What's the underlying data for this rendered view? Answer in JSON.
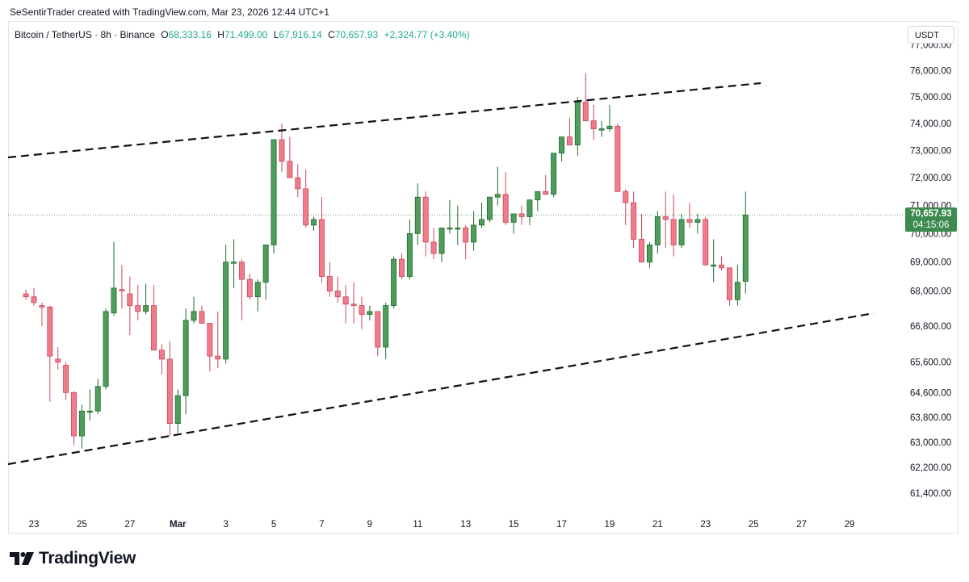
{
  "credit": "SeSentirTrader created with TradingView.com, Mar 23, 2026 12:44 UTC+1",
  "legend": {
    "symbol": "Bitcoin / TetherUS · 8h · Binance",
    "o_label": "O",
    "o": "68,333.16",
    "h_label": "H",
    "h": "71,499.00",
    "l_label": "L",
    "l": "67,916.14",
    "c_label": "C",
    "c": "70,657.93",
    "change": "+2,324.77 (+3.40%)"
  },
  "currency": "USDT",
  "last_price": {
    "price": "70,657.93",
    "countdown": "04:15:06"
  },
  "brand": "TradingView",
  "colors": {
    "up": "#4f9d5d",
    "down": "#ef7b8b",
    "up_border": "#1e6b2d",
    "down_border": "#c9485b",
    "trendline": "#111111",
    "price_line": "#3c8a4e"
  },
  "chart_data": {
    "type": "candlestick",
    "symbol": "Bitcoin / TetherUS",
    "interval": "8h",
    "exchange": "Binance",
    "y_scale": "log",
    "y_ticks": [
      61400,
      62200,
      63000,
      63800,
      64600,
      65600,
      66800,
      68000,
      69000,
      70000,
      71000,
      72000,
      73000,
      74000,
      75000,
      76000,
      77000
    ],
    "y_tick_labels": [
      "61,400.00",
      "62,200.00",
      "63,000.00",
      "63,800.00",
      "64,600.00",
      "65,600.00",
      "66,800.00",
      "68,000.00",
      "69,000.00",
      "70,000.00",
      "71,000.00",
      "72,000.00",
      "73,000.00",
      "74,000.00",
      "75,000.00",
      "76,000.00",
      "77,000.00"
    ],
    "x_ticks": [
      {
        "label": "23",
        "date": "2026-02-23"
      },
      {
        "label": "25",
        "date": "2026-02-25"
      },
      {
        "label": "27",
        "date": "2026-02-27"
      },
      {
        "label": "Mar",
        "date": "2026-03-01"
      },
      {
        "label": "3",
        "date": "2026-03-03"
      },
      {
        "label": "5",
        "date": "2026-03-05"
      },
      {
        "label": "7",
        "date": "2026-03-07"
      },
      {
        "label": "9",
        "date": "2026-03-09"
      },
      {
        "label": "11",
        "date": "2026-03-11"
      },
      {
        "label": "13",
        "date": "2026-03-13"
      },
      {
        "label": "15",
        "date": "2026-03-15"
      },
      {
        "label": "17",
        "date": "2026-03-17"
      },
      {
        "label": "19",
        "date": "2026-03-19"
      },
      {
        "label": "21",
        "date": "2026-03-21"
      },
      {
        "label": "23",
        "date": "2026-03-23"
      },
      {
        "label": "25",
        "date": "2026-03-25"
      },
      {
        "label": "27",
        "date": "2026-03-27"
      },
      {
        "label": "29",
        "date": "2026-03-29"
      }
    ],
    "candles_ohlc": [
      [
        67900,
        68050,
        67700,
        67800
      ],
      [
        67800,
        68100,
        67500,
        67600
      ],
      [
        67500,
        67600,
        66800,
        67450
      ],
      [
        67450,
        67500,
        64300,
        65800
      ],
      [
        65700,
        66100,
        65350,
        65600
      ],
      [
        65500,
        65600,
        64350,
        64600
      ],
      [
        64600,
        64650,
        62900,
        63200
      ],
      [
        63200,
        64200,
        62800,
        64000
      ],
      [
        64000,
        64700,
        63700,
        64000
      ],
      [
        64000,
        65050,
        63900,
        64800
      ],
      [
        64800,
        67400,
        64700,
        67300
      ],
      [
        67250,
        69700,
        67150,
        68100
      ],
      [
        68050,
        68900,
        67400,
        68000
      ],
      [
        67900,
        68500,
        66500,
        67500
      ],
      [
        67500,
        68200,
        67000,
        67300
      ],
      [
        67300,
        68250,
        67200,
        67500
      ],
      [
        67500,
        68200,
        67100,
        66000
      ],
      [
        66000,
        66200,
        65200,
        65700
      ],
      [
        65700,
        66300,
        63200,
        63600
      ],
      [
        63600,
        64700,
        63300,
        64500
      ],
      [
        64500,
        67400,
        63900,
        67000
      ],
      [
        67000,
        67800,
        66900,
        67300
      ],
      [
        67300,
        67500,
        67000,
        66900
      ],
      [
        66900,
        66900,
        65300,
        65800
      ],
      [
        65800,
        67300,
        65400,
        65700
      ],
      [
        65700,
        69600,
        65550,
        69000
      ],
      [
        69000,
        69800,
        68100,
        69000
      ],
      [
        69000,
        69100,
        67000,
        68400
      ],
      [
        68400,
        68600,
        67700,
        67800
      ],
      [
        67800,
        68400,
        67300,
        68300
      ],
      [
        68300,
        69500,
        67700,
        69600
      ],
      [
        69600,
        72900,
        69300,
        73400
      ],
      [
        73400,
        74000,
        72200,
        72600
      ],
      [
        72600,
        73500,
        72000,
        72000
      ],
      [
        72000,
        72500,
        71300,
        71600
      ],
      [
        71600,
        72300,
        70200,
        70300
      ],
      [
        70300,
        70600,
        70100,
        70500
      ],
      [
        70500,
        71300,
        68300,
        68500
      ],
      [
        68500,
        69000,
        67800,
        68000
      ],
      [
        68000,
        68500,
        67600,
        67800
      ],
      [
        67800,
        68200,
        66900,
        67550
      ],
      [
        67550,
        68300,
        66900,
        67500
      ],
      [
        67500,
        67800,
        66700,
        67200
      ],
      [
        67200,
        67500,
        67000,
        67300
      ],
      [
        67300,
        67300,
        65800,
        66100
      ],
      [
        66100,
        67600,
        65700,
        67500
      ],
      [
        67500,
        69200,
        67400,
        69100
      ],
      [
        69100,
        69300,
        68400,
        68500
      ],
      [
        68500,
        70500,
        68400,
        70000
      ],
      [
        70000,
        71800,
        69600,
        71300
      ],
      [
        71300,
        71500,
        69200,
        69700
      ],
      [
        69700,
        70200,
        69100,
        69300
      ],
      [
        69300,
        70200,
        69000,
        70200
      ],
      [
        70200,
        71200,
        70000,
        70200
      ],
      [
        70200,
        71000,
        69600,
        70200
      ],
      [
        70200,
        70300,
        69100,
        69700
      ],
      [
        69700,
        70800,
        69400,
        70300
      ],
      [
        70300,
        71100,
        70200,
        70500
      ],
      [
        70500,
        71200,
        70400,
        71300
      ],
      [
        71300,
        72400,
        71000,
        71400
      ],
      [
        71400,
        72200,
        70300,
        70400
      ],
      [
        70400,
        70600,
        70000,
        70700
      ],
      [
        70700,
        71000,
        70300,
        70600
      ],
      [
        70600,
        71200,
        70300,
        71200
      ],
      [
        71200,
        71500,
        70800,
        71500
      ],
      [
        71500,
        72100,
        71400,
        71400
      ],
      [
        71400,
        72100,
        71300,
        72900
      ],
      [
        72900,
        73400,
        72600,
        73500
      ],
      [
        73500,
        74200,
        73200,
        73200
      ],
      [
        73200,
        75000,
        72800,
        74800
      ],
      [
        74800,
        75900,
        74600,
        74100
      ],
      [
        74100,
        74700,
        73400,
        73800
      ],
      [
        73800,
        74100,
        73500,
        73800
      ],
      [
        73800,
        74700,
        73700,
        73900
      ],
      [
        73900,
        74000,
        71500,
        71500
      ],
      [
        71500,
        71600,
        70300,
        71100
      ],
      [
        71100,
        71500,
        69500,
        69800
      ],
      [
        69800,
        70700,
        69300,
        69000
      ],
      [
        69000,
        69700,
        68800,
        69600
      ],
      [
        69600,
        70800,
        69300,
        70600
      ],
      [
        70600,
        71500,
        69500,
        70500
      ],
      [
        70500,
        71400,
        69200,
        69600
      ],
      [
        69600,
        70700,
        69500,
        70500
      ],
      [
        70500,
        71100,
        70200,
        70400
      ],
      [
        70400,
        70700,
        70000,
        70500
      ],
      [
        70500,
        70600,
        68900,
        68900
      ],
      [
        68900,
        69800,
        68300,
        68900
      ],
      [
        68900,
        69200,
        68700,
        68800
      ],
      [
        68800,
        68800,
        67500,
        67700
      ],
      [
        67700,
        68900,
        67500,
        68300
      ],
      [
        68333.16,
        71499,
        67916.14,
        70657.93
      ]
    ],
    "last_price": 70657.93,
    "trendlines": [
      {
        "style": "dashed",
        "label": "upper channel"
      },
      {
        "style": "dashed",
        "label": "lower channel"
      }
    ]
  }
}
